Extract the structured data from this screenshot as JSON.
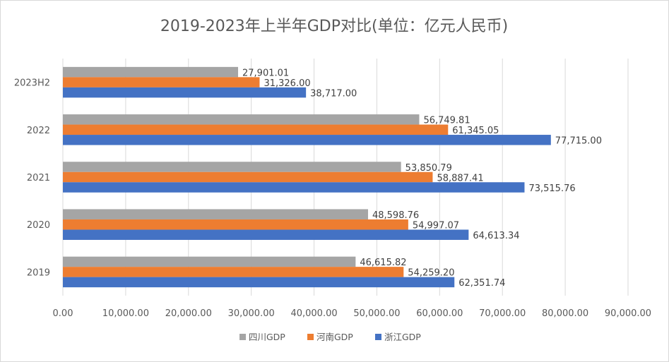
{
  "chart_data": {
    "type": "bar",
    "orientation": "horizontal",
    "title": "2019-2023年上半年GDP对比(单位：亿元人民币)",
    "categories": [
      "2019",
      "2020",
      "2021",
      "2022",
      "2023H2"
    ],
    "series": [
      {
        "name": "四川GDP",
        "color": "#a5a5a5",
        "values": [
          46615.82,
          48598.76,
          53850.79,
          56749.81,
          27901.01
        ],
        "labels": [
          "46,615.82",
          "48,598.76",
          "53,850.79",
          "56,749.81",
          "27,901.01"
        ]
      },
      {
        "name": "河南GDP",
        "color": "#ed7d31",
        "values": [
          54259.2,
          54997.07,
          58887.41,
          61345.05,
          31326.0
        ],
        "labels": [
          "54,259.20",
          "54,997.07",
          "58,887.41",
          "61,345.05",
          "31,326.00"
        ]
      },
      {
        "name": "浙江GDP",
        "color": "#4472c4",
        "values": [
          62351.74,
          64613.34,
          73515.76,
          77715.0,
          38717.0
        ],
        "labels": [
          "62,351.74",
          "64,613.34",
          "73,515.76",
          "77,715.00",
          "38,717.00"
        ]
      }
    ],
    "xlim": [
      0,
      90000
    ],
    "xticks": [
      0,
      10000,
      20000,
      30000,
      40000,
      50000,
      60000,
      70000,
      80000,
      90000
    ],
    "xtick_labels": [
      "0.00",
      "10,000.00",
      "20,000.00",
      "30,000.00",
      "40,000.00",
      "50,000.00",
      "60,000.00",
      "70,000.00",
      "80,000.00",
      "90,000.00"
    ],
    "grid": true,
    "legend_position": "bottom"
  }
}
